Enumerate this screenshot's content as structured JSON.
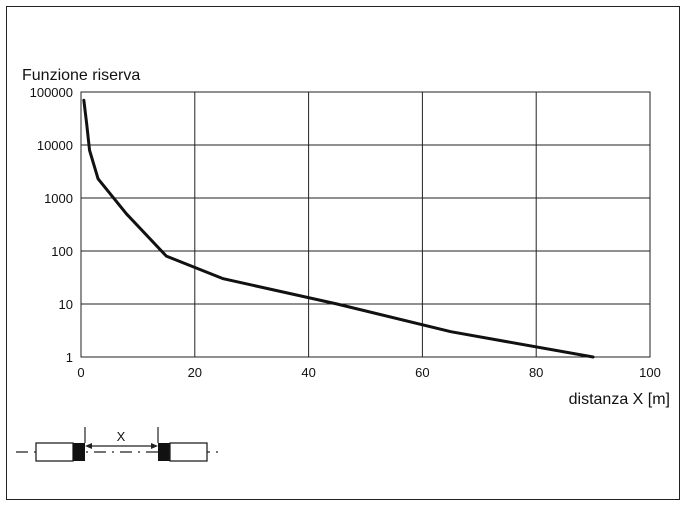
{
  "chart_data": {
    "type": "line",
    "title": "",
    "ylabel": "Funzione riserva",
    "xlabel": "distanza X [m]",
    "xlim": [
      0,
      100
    ],
    "ylim": [
      1,
      100000
    ],
    "yscale": "log",
    "grid": true,
    "x_ticks": [
      "0",
      "20",
      "40",
      "60",
      "80",
      "100"
    ],
    "y_ticks": [
      "1",
      "10",
      "100",
      "1000",
      "10000",
      "100000"
    ],
    "series": [
      {
        "x": [
          0.5,
          1,
          1.5,
          3,
          8,
          15,
          25,
          45,
          65,
          90
        ],
        "y": [
          70000,
          25000,
          8000,
          2300,
          500,
          80,
          30,
          10,
          3,
          1
        ]
      }
    ]
  },
  "diagram": {
    "distance_label": "X"
  },
  "colors": {
    "line": "#111111",
    "grid": "#222222",
    "sensor_fill": "#111111"
  }
}
